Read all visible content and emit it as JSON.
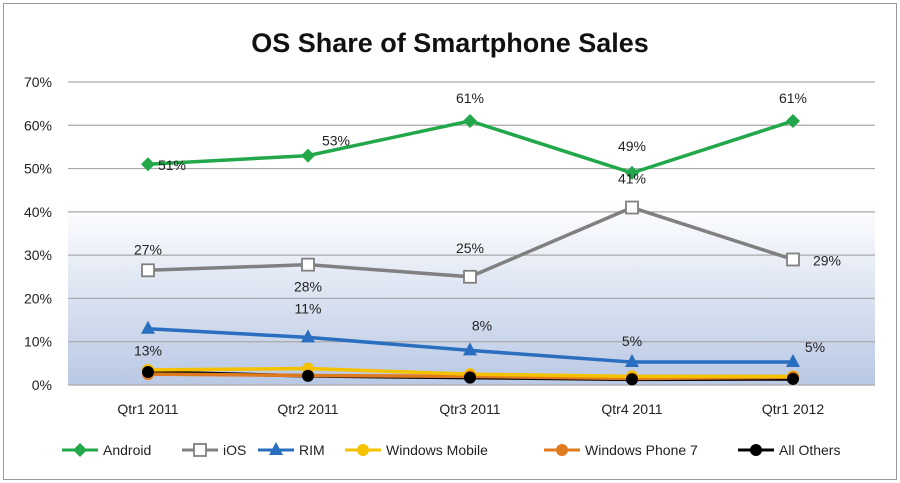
{
  "chart_data": {
    "type": "line",
    "title": "OS Share of Smartphone Sales",
    "categories": [
      "Qtr1 2011",
      "Qtr2 2011",
      "Qtr3 2011",
      "Qtr4 2011",
      "Qtr1 2012"
    ],
    "ylim": [
      0,
      70
    ],
    "yticks": [
      "0%",
      "10%",
      "20%",
      "30%",
      "40%",
      "50%",
      "60%",
      "70%"
    ],
    "grid": true,
    "legend": "bottom",
    "series": [
      {
        "name": "Android",
        "color": "#22a84a",
        "marker": "diamond",
        "values": [
          51,
          53,
          61,
          49,
          61
        ],
        "labels": [
          "51%",
          "53%",
          "61%",
          "49%",
          "61%"
        ]
      },
      {
        "name": "iOS",
        "color": "#808080",
        "marker": "square-open",
        "values": [
          26.5,
          27.8,
          25,
          41,
          29
        ],
        "labels": [
          "27%",
          "28%",
          "25%",
          "41%",
          "29%"
        ]
      },
      {
        "name": "RIM",
        "color": "#2a6fbf",
        "marker": "triangle",
        "values": [
          13,
          11,
          8,
          5.3,
          5.3
        ],
        "labels": [
          "13%",
          "11%",
          "8%",
          "5%",
          "5%"
        ]
      },
      {
        "name": "Windows Mobile",
        "color": "#f5c200",
        "marker": "circle",
        "values": [
          3.5,
          3.8,
          2.5,
          2,
          2
        ],
        "labels": []
      },
      {
        "name": "Windows Phone 7",
        "color": "#e07a1f",
        "marker": "circle",
        "values": [
          2.5,
          2.2,
          2,
          1.5,
          1.8
        ],
        "labels": []
      },
      {
        "name": "All Others",
        "color": "#000000",
        "marker": "circle",
        "values": [
          3,
          2.1,
          1.7,
          1.3,
          1.4
        ],
        "labels": []
      }
    ]
  }
}
